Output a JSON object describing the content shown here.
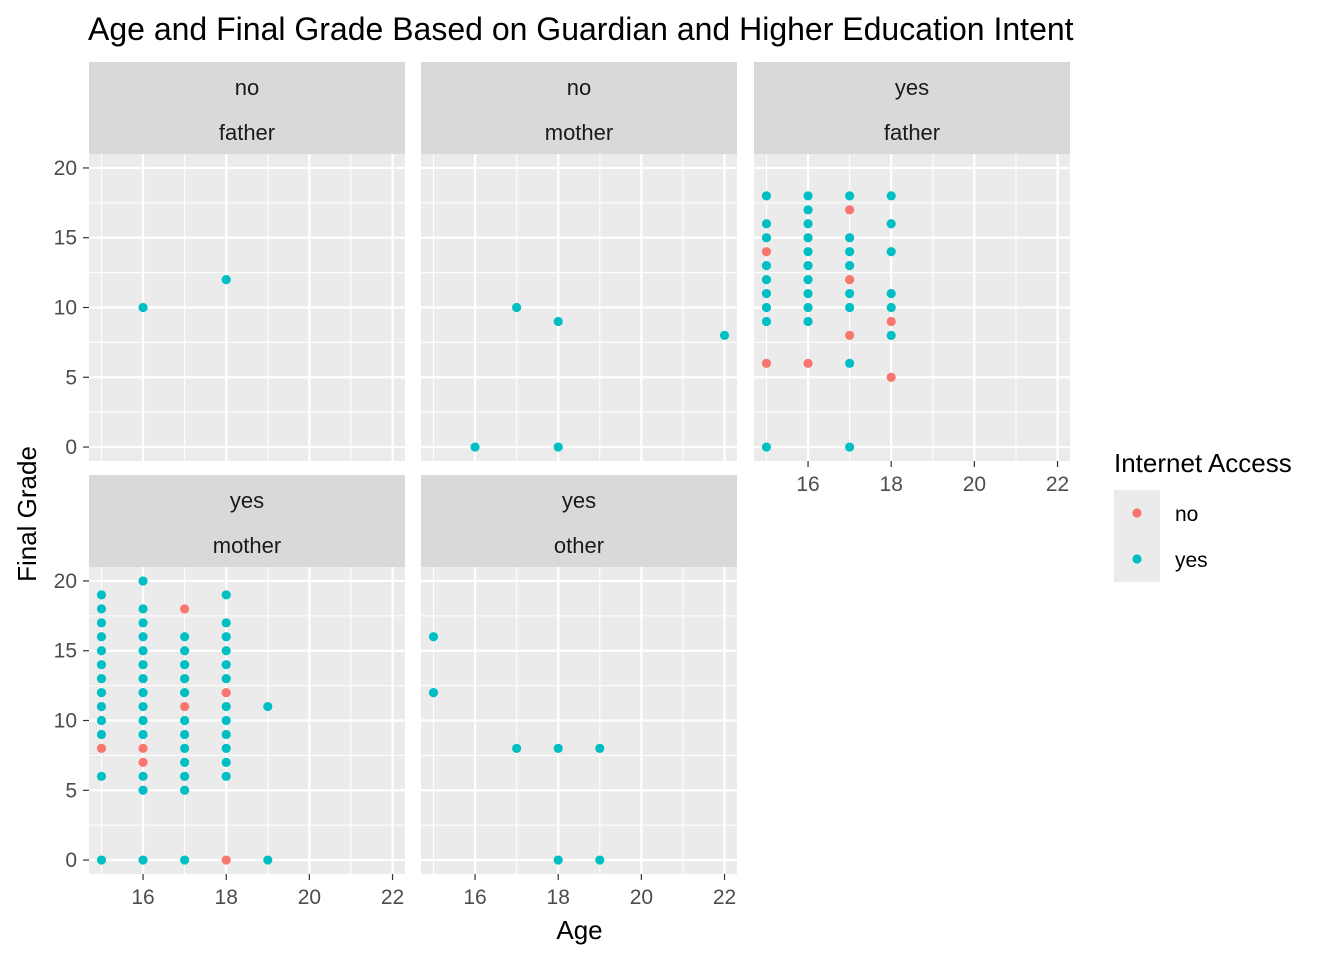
{
  "chart_data": {
    "type": "scatter",
    "title": "Age and Final Grade Based on Guardian and Higher Education Intent",
    "xlabel": "Age",
    "ylabel": "Final Grade",
    "xlim": [
      14.7,
      22.3
    ],
    "ylim": [
      -1,
      21
    ],
    "x_ticks": [
      16,
      18,
      20,
      22
    ],
    "y_ticks": [
      0,
      5,
      10,
      15,
      20
    ],
    "grid": true,
    "facet_rows": 2,
    "facet_cols": 3,
    "legend": {
      "title": "Internet Access",
      "position": "right",
      "entries": [
        {
          "label": "no",
          "color": "#F8766D"
        },
        {
          "label": "yes",
          "color": "#00BFC4"
        }
      ]
    },
    "colors": {
      "no": "#F8766D",
      "yes": "#00BFC4"
    },
    "panels": [
      {
        "strip": [
          "no",
          "father"
        ],
        "row": 0,
        "col": 0,
        "points": [
          {
            "x": 16,
            "y": 10,
            "internet": "yes"
          },
          {
            "x": 18,
            "y": 12,
            "internet": "yes"
          }
        ]
      },
      {
        "strip": [
          "no",
          "mother"
        ],
        "row": 0,
        "col": 1,
        "points": [
          {
            "x": 17,
            "y": 10,
            "internet": "yes"
          },
          {
            "x": 18,
            "y": 9,
            "internet": "yes"
          },
          {
            "x": 22,
            "y": 8,
            "internet": "yes"
          },
          {
            "x": 16,
            "y": 0,
            "internet": "yes"
          },
          {
            "x": 18,
            "y": 0,
            "internet": "yes"
          }
        ]
      },
      {
        "strip": [
          "yes",
          "father"
        ],
        "row": 0,
        "col": 2,
        "points": [
          {
            "x": 15,
            "y": 18,
            "internet": "yes"
          },
          {
            "x": 15,
            "y": 16,
            "internet": "yes"
          },
          {
            "x": 15,
            "y": 15,
            "internet": "yes"
          },
          {
            "x": 15,
            "y": 14,
            "internet": "no"
          },
          {
            "x": 15,
            "y": 13,
            "internet": "yes"
          },
          {
            "x": 15,
            "y": 12,
            "internet": "yes"
          },
          {
            "x": 15,
            "y": 11,
            "internet": "yes"
          },
          {
            "x": 15,
            "y": 10,
            "internet": "yes"
          },
          {
            "x": 15,
            "y": 9,
            "internet": "yes"
          },
          {
            "x": 15,
            "y": 6,
            "internet": "no"
          },
          {
            "x": 15,
            "y": 0,
            "internet": "yes"
          },
          {
            "x": 16,
            "y": 18,
            "internet": "yes"
          },
          {
            "x": 16,
            "y": 17,
            "internet": "yes"
          },
          {
            "x": 16,
            "y": 16,
            "internet": "yes"
          },
          {
            "x": 16,
            "y": 15,
            "internet": "yes"
          },
          {
            "x": 16,
            "y": 14,
            "internet": "yes"
          },
          {
            "x": 16,
            "y": 13,
            "internet": "yes"
          },
          {
            "x": 16,
            "y": 12,
            "internet": "yes"
          },
          {
            "x": 16,
            "y": 11,
            "internet": "yes"
          },
          {
            "x": 16,
            "y": 10,
            "internet": "yes"
          },
          {
            "x": 16,
            "y": 9,
            "internet": "yes"
          },
          {
            "x": 16,
            "y": 6,
            "internet": "no"
          },
          {
            "x": 17,
            "y": 18,
            "internet": "yes"
          },
          {
            "x": 17,
            "y": 17,
            "internet": "no"
          },
          {
            "x": 17,
            "y": 15,
            "internet": "yes"
          },
          {
            "x": 17,
            "y": 14,
            "internet": "yes"
          },
          {
            "x": 17,
            "y": 13,
            "internet": "yes"
          },
          {
            "x": 17,
            "y": 12,
            "internet": "no"
          },
          {
            "x": 17,
            "y": 11,
            "internet": "yes"
          },
          {
            "x": 17,
            "y": 10,
            "internet": "yes"
          },
          {
            "x": 17,
            "y": 8,
            "internet": "no"
          },
          {
            "x": 17,
            "y": 6,
            "internet": "yes"
          },
          {
            "x": 17,
            "y": 0,
            "internet": "yes"
          },
          {
            "x": 18,
            "y": 18,
            "internet": "yes"
          },
          {
            "x": 18,
            "y": 16,
            "internet": "yes"
          },
          {
            "x": 18,
            "y": 14,
            "internet": "yes"
          },
          {
            "x": 18,
            "y": 11,
            "internet": "yes"
          },
          {
            "x": 18,
            "y": 10,
            "internet": "yes"
          },
          {
            "x": 18,
            "y": 9,
            "internet": "no"
          },
          {
            "x": 18,
            "y": 8,
            "internet": "yes"
          },
          {
            "x": 18,
            "y": 5,
            "internet": "no"
          }
        ]
      },
      {
        "strip": [
          "yes",
          "mother"
        ],
        "row": 1,
        "col": 0,
        "points": [
          {
            "x": 15,
            "y": 19,
            "internet": "yes"
          },
          {
            "x": 15,
            "y": 18,
            "internet": "yes"
          },
          {
            "x": 15,
            "y": 17,
            "internet": "yes"
          },
          {
            "x": 15,
            "y": 16,
            "internet": "yes"
          },
          {
            "x": 15,
            "y": 15,
            "internet": "yes"
          },
          {
            "x": 15,
            "y": 14,
            "internet": "yes"
          },
          {
            "x": 15,
            "y": 13,
            "internet": "yes"
          },
          {
            "x": 15,
            "y": 12,
            "internet": "yes"
          },
          {
            "x": 15,
            "y": 11,
            "internet": "yes"
          },
          {
            "x": 15,
            "y": 10,
            "internet": "yes"
          },
          {
            "x": 15,
            "y": 9,
            "internet": "yes"
          },
          {
            "x": 15,
            "y": 8,
            "internet": "no"
          },
          {
            "x": 15,
            "y": 6,
            "internet": "yes"
          },
          {
            "x": 15,
            "y": 0,
            "internet": "yes"
          },
          {
            "x": 16,
            "y": 20,
            "internet": "yes"
          },
          {
            "x": 16,
            "y": 18,
            "internet": "yes"
          },
          {
            "x": 16,
            "y": 17,
            "internet": "yes"
          },
          {
            "x": 16,
            "y": 16,
            "internet": "yes"
          },
          {
            "x": 16,
            "y": 15,
            "internet": "yes"
          },
          {
            "x": 16,
            "y": 14,
            "internet": "yes"
          },
          {
            "x": 16,
            "y": 13,
            "internet": "yes"
          },
          {
            "x": 16,
            "y": 12,
            "internet": "yes"
          },
          {
            "x": 16,
            "y": 11,
            "internet": "yes"
          },
          {
            "x": 16,
            "y": 10,
            "internet": "yes"
          },
          {
            "x": 16,
            "y": 9,
            "internet": "yes"
          },
          {
            "x": 16,
            "y": 8,
            "internet": "no"
          },
          {
            "x": 16,
            "y": 7,
            "internet": "no"
          },
          {
            "x": 16,
            "y": 6,
            "internet": "yes"
          },
          {
            "x": 16,
            "y": 5,
            "internet": "yes"
          },
          {
            "x": 16,
            "y": 0,
            "internet": "yes"
          },
          {
            "x": 17,
            "y": 18,
            "internet": "no"
          },
          {
            "x": 17,
            "y": 16,
            "internet": "yes"
          },
          {
            "x": 17,
            "y": 15,
            "internet": "yes"
          },
          {
            "x": 17,
            "y": 14,
            "internet": "yes"
          },
          {
            "x": 17,
            "y": 13,
            "internet": "yes"
          },
          {
            "x": 17,
            "y": 12,
            "internet": "yes"
          },
          {
            "x": 17,
            "y": 11,
            "internet": "no"
          },
          {
            "x": 17,
            "y": 10,
            "internet": "yes"
          },
          {
            "x": 17,
            "y": 9,
            "internet": "yes"
          },
          {
            "x": 17,
            "y": 8,
            "internet": "yes"
          },
          {
            "x": 17,
            "y": 7,
            "internet": "yes"
          },
          {
            "x": 17,
            "y": 6,
            "internet": "yes"
          },
          {
            "x": 17,
            "y": 5,
            "internet": "yes"
          },
          {
            "x": 17,
            "y": 0,
            "internet": "yes"
          },
          {
            "x": 18,
            "y": 19,
            "internet": "yes"
          },
          {
            "x": 18,
            "y": 17,
            "internet": "yes"
          },
          {
            "x": 18,
            "y": 16,
            "internet": "yes"
          },
          {
            "x": 18,
            "y": 15,
            "internet": "yes"
          },
          {
            "x": 18,
            "y": 14,
            "internet": "yes"
          },
          {
            "x": 18,
            "y": 13,
            "internet": "yes"
          },
          {
            "x": 18,
            "y": 12,
            "internet": "no"
          },
          {
            "x": 18,
            "y": 11,
            "internet": "yes"
          },
          {
            "x": 18,
            "y": 10,
            "internet": "yes"
          },
          {
            "x": 18,
            "y": 9,
            "internet": "yes"
          },
          {
            "x": 18,
            "y": 8,
            "internet": "yes"
          },
          {
            "x": 18,
            "y": 7,
            "internet": "yes"
          },
          {
            "x": 18,
            "y": 6,
            "internet": "yes"
          },
          {
            "x": 18,
            "y": 0,
            "internet": "no"
          },
          {
            "x": 19,
            "y": 11,
            "internet": "yes"
          },
          {
            "x": 19,
            "y": 0,
            "internet": "yes"
          }
        ]
      },
      {
        "strip": [
          "yes",
          "other"
        ],
        "row": 1,
        "col": 1,
        "points": [
          {
            "x": 15,
            "y": 16,
            "internet": "yes"
          },
          {
            "x": 15,
            "y": 12,
            "internet": "yes"
          },
          {
            "x": 17,
            "y": 8,
            "internet": "yes"
          },
          {
            "x": 18,
            "y": 8,
            "internet": "yes"
          },
          {
            "x": 19,
            "y": 8,
            "internet": "yes"
          },
          {
            "x": 18,
            "y": 0,
            "internet": "yes"
          },
          {
            "x": 19,
            "y": 0,
            "internet": "yes"
          }
        ]
      }
    ]
  }
}
